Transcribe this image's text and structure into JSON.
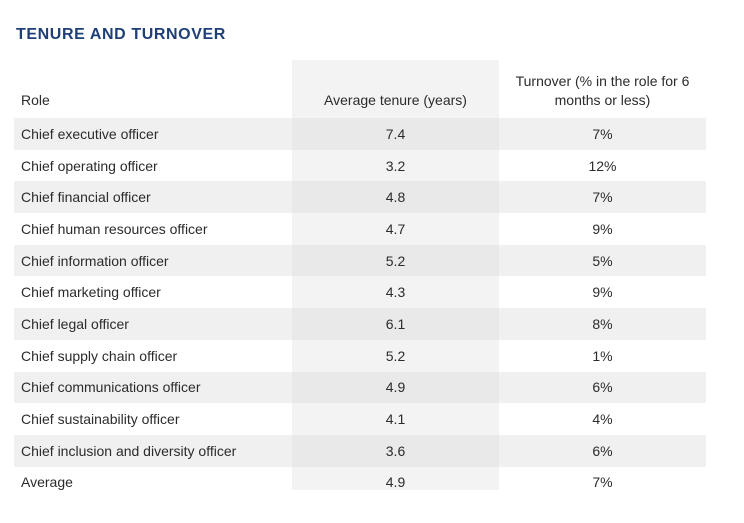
{
  "title": "TENURE AND TURNOVER",
  "headers": {
    "role": "Role",
    "tenure": "Average tenure (years)",
    "turnover": "Turnover (% in the role for 6 months or less)"
  },
  "rows": [
    {
      "role": "Chief executive officer",
      "tenure": "7.4",
      "turnover": "7%"
    },
    {
      "role": "Chief operating officer",
      "tenure": "3.2",
      "turnover": "12%"
    },
    {
      "role": "Chief financial officer",
      "tenure": "4.8",
      "turnover": "7%"
    },
    {
      "role": "Chief human resources officer",
      "tenure": "4.7",
      "turnover": "9%"
    },
    {
      "role": "Chief information officer",
      "tenure": "5.2",
      "turnover": "5%"
    },
    {
      "role": "Chief marketing officer",
      "tenure": "4.3",
      "turnover": "9%"
    },
    {
      "role": "Chief legal officer",
      "tenure": "6.1",
      "turnover": "8%"
    },
    {
      "role": "Chief supply chain officer",
      "tenure": "5.2",
      "turnover": "1%"
    },
    {
      "role": "Chief communications officer",
      "tenure": "4.9",
      "turnover": "6%"
    },
    {
      "role": "Chief sustainability officer",
      "tenure": "4.1",
      "turnover": "4%"
    },
    {
      "role": "Chief inclusion and diversity officer",
      "tenure": "3.6",
      "turnover": "6%"
    },
    {
      "role": "Average",
      "tenure": "4.9",
      "turnover": "7%"
    }
  ]
}
